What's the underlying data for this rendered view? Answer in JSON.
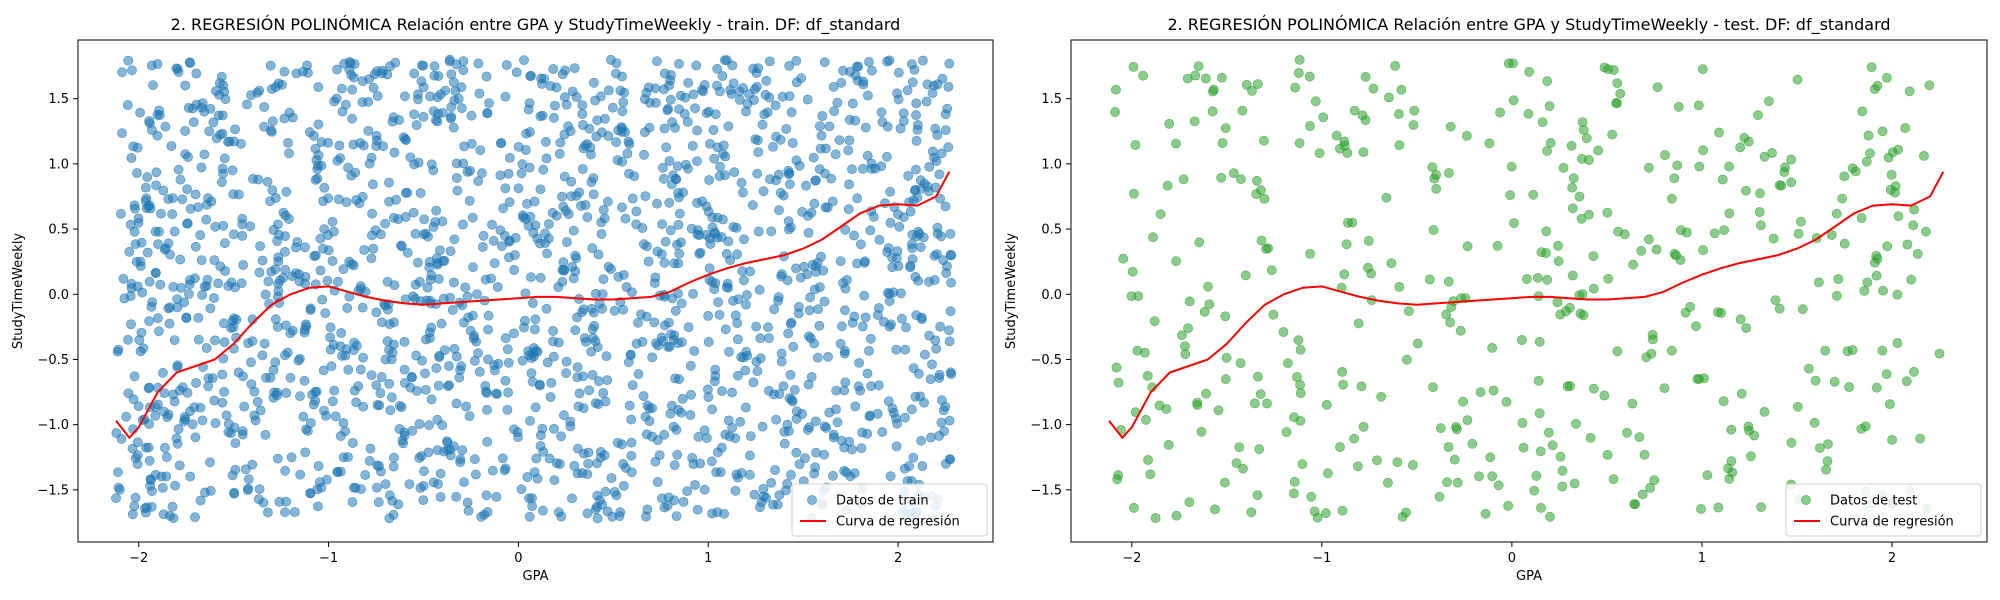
{
  "chart_data": [
    {
      "type": "scatter",
      "title": "2. REGRESIÓN POLINÓMICA Relación entre GPA y StudyTimeWeekly - train. DF: df_standard",
      "xlabel": "GPA",
      "ylabel": "StudyTimeWeekly",
      "xlim": [
        -2.32,
        2.5
      ],
      "ylim": [
        -1.9,
        1.95
      ],
      "xticks": [
        -2,
        -1,
        0,
        1,
        2
      ],
      "xtick_labels": [
        "−2",
        "−1",
        "0",
        "1",
        "2"
      ],
      "yticks": [
        -1.5,
        -1.0,
        -0.5,
        0.0,
        0.5,
        1.0,
        1.5
      ],
      "ytick_labels": [
        "−1.5",
        "−1.0",
        "−0.5",
        "0.0",
        "0.5",
        "1.0",
        "1.5"
      ],
      "grid": false,
      "legend_position": "lower-right",
      "scatter": {
        "name": "Datos de train",
        "color": "#1f77b4",
        "count": 1900,
        "x_range": [
          -2.12,
          2.28
        ],
        "y_range": [
          -1.72,
          1.8
        ],
        "seed": 11
      },
      "curve": {
        "name": "Curva de regresión",
        "color": "#ff0000",
        "x": [
          -2.12,
          -2.05,
          -2.0,
          -1.9,
          -1.8,
          -1.7,
          -1.6,
          -1.5,
          -1.4,
          -1.3,
          -1.2,
          -1.1,
          -1.0,
          -0.9,
          -0.8,
          -0.7,
          -0.6,
          -0.5,
          -0.4,
          -0.3,
          -0.2,
          -0.1,
          0.0,
          0.1,
          0.2,
          0.3,
          0.4,
          0.5,
          0.6,
          0.7,
          0.8,
          0.9,
          1.0,
          1.1,
          1.2,
          1.3,
          1.4,
          1.5,
          1.6,
          1.7,
          1.8,
          1.9,
          2.0,
          2.1,
          2.2,
          2.27
        ],
        "y": [
          -0.97,
          -1.1,
          -1.02,
          -0.75,
          -0.6,
          -0.55,
          -0.5,
          -0.38,
          -0.22,
          -0.08,
          0.0,
          0.05,
          0.06,
          0.02,
          -0.02,
          -0.05,
          -0.07,
          -0.08,
          -0.07,
          -0.06,
          -0.05,
          -0.04,
          -0.03,
          -0.02,
          -0.02,
          -0.03,
          -0.04,
          -0.04,
          -0.03,
          -0.02,
          0.02,
          0.09,
          0.15,
          0.2,
          0.24,
          0.27,
          0.3,
          0.35,
          0.42,
          0.52,
          0.62,
          0.68,
          0.69,
          0.68,
          0.75,
          0.94
        ]
      }
    },
    {
      "type": "scatter",
      "title": "2. REGRESIÓN POLINÓMICA Relación entre GPA y StudyTimeWeekly - test. DF: df_standard",
      "xlabel": "GPA",
      "ylabel": "StudyTimeWeekly",
      "xlim": [
        -2.32,
        2.5
      ],
      "ylim": [
        -1.9,
        1.95
      ],
      "xticks": [
        -2,
        -1,
        0,
        1,
        2
      ],
      "xtick_labels": [
        "−2",
        "−1",
        "0",
        "1",
        "2"
      ],
      "yticks": [
        -1.5,
        -1.0,
        -0.5,
        0.0,
        0.5,
        1.0,
        1.5
      ],
      "ytick_labels": [
        "−1.5",
        "−1.0",
        "−0.5",
        "0.0",
        "0.5",
        "1.0",
        "1.5"
      ],
      "grid": false,
      "legend_position": "lower-right",
      "scatter": {
        "name": "Datos de test",
        "color": "#2ca02c",
        "count": 480,
        "x_range": [
          -2.12,
          2.28
        ],
        "y_range": [
          -1.72,
          1.8
        ],
        "seed": 29
      },
      "curve": {
        "name": "Curva de regresión",
        "color": "#ff0000",
        "x": [
          -2.12,
          -2.05,
          -2.0,
          -1.9,
          -1.8,
          -1.7,
          -1.6,
          -1.5,
          -1.4,
          -1.3,
          -1.2,
          -1.1,
          -1.0,
          -0.9,
          -0.8,
          -0.7,
          -0.6,
          -0.5,
          -0.4,
          -0.3,
          -0.2,
          -0.1,
          0.0,
          0.1,
          0.2,
          0.3,
          0.4,
          0.5,
          0.6,
          0.7,
          0.8,
          0.9,
          1.0,
          1.1,
          1.2,
          1.3,
          1.4,
          1.5,
          1.6,
          1.7,
          1.8,
          1.9,
          2.0,
          2.1,
          2.2,
          2.27
        ],
        "y": [
          -0.97,
          -1.1,
          -1.02,
          -0.75,
          -0.6,
          -0.55,
          -0.5,
          -0.38,
          -0.22,
          -0.08,
          0.0,
          0.05,
          0.06,
          0.02,
          -0.02,
          -0.05,
          -0.07,
          -0.08,
          -0.07,
          -0.06,
          -0.05,
          -0.04,
          -0.03,
          -0.02,
          -0.02,
          -0.03,
          -0.04,
          -0.04,
          -0.03,
          -0.02,
          0.02,
          0.09,
          0.15,
          0.2,
          0.24,
          0.27,
          0.3,
          0.35,
          0.42,
          0.52,
          0.62,
          0.68,
          0.69,
          0.68,
          0.75,
          0.94
        ]
      }
    }
  ]
}
